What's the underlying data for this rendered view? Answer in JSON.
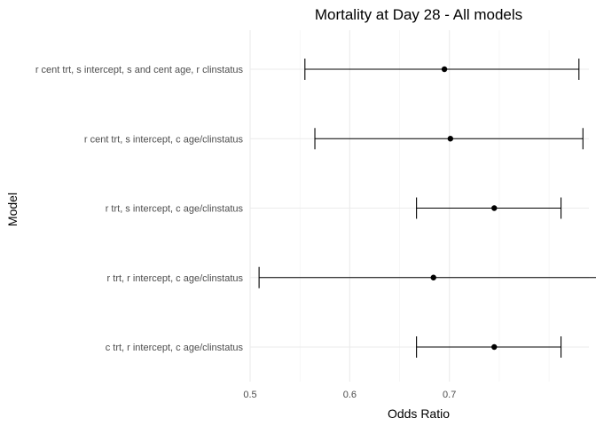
{
  "chart_data": {
    "type": "errorbar",
    "title": "Mortality at Day 28 - All models",
    "xlabel": "Odds Ratio",
    "ylabel": "Model",
    "xlim": [
      0.5,
      0.84
    ],
    "x_ticks": [
      0.5,
      0.6,
      0.7
    ],
    "x_tick_labels": [
      "0.5",
      "0.6",
      "0.7"
    ],
    "x_minor_ticks": [
      0.55,
      0.65,
      0.75,
      0.8
    ],
    "grid": true,
    "legend": "none",
    "models": [
      {
        "label": "r cent trt, s intercept, s and cent age, r clinstatus",
        "estimate": 0.695,
        "lower": 0.555,
        "upper": 0.83
      },
      {
        "label": "r cent trt, s intercept, c age/clinstatus",
        "estimate": 0.701,
        "lower": 0.565,
        "upper": 0.834
      },
      {
        "label": "r trt, s intercept, c age/clinstatus",
        "estimate": 0.745,
        "lower": 0.667,
        "upper": 0.812
      },
      {
        "label": "r trt, r intercept, c age/clinstatus",
        "estimate": 0.684,
        "lower": 0.509,
        "upper": 0.862
      },
      {
        "label": "c trt, r intercept, c age/clinstatus",
        "estimate": 0.745,
        "lower": 0.667,
        "upper": 0.812
      }
    ]
  }
}
